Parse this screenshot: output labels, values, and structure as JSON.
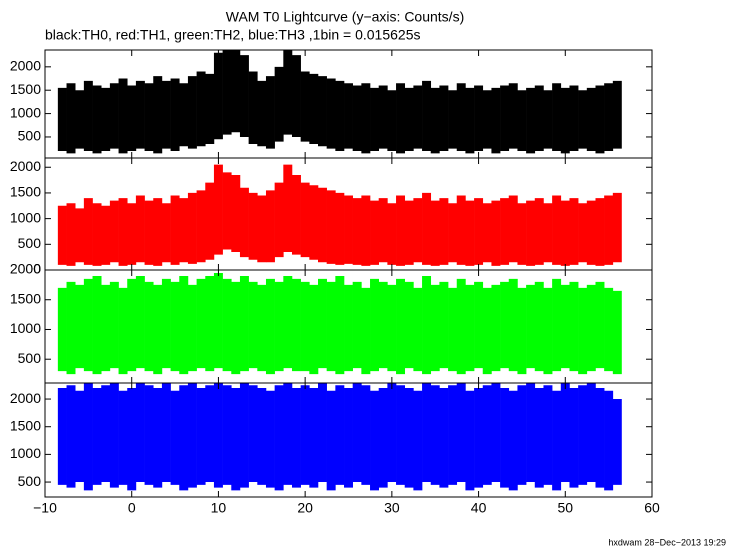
{
  "footer": "hxdwam 28−Dec−2013 19:29",
  "chart_data": [
    {
      "type": "band",
      "title": "WAM T0 Lightcurve (y−axis: Counts/s)",
      "subtitle": "black:TH0, red:TH1, green:TH2, blue:TH3 ,1bin = 0.015625s",
      "color": "#000000",
      "x": [
        -8,
        -7,
        -6,
        -5,
        -4,
        -3,
        -2,
        -1,
        0,
        1,
        2,
        3,
        4,
        5,
        6,
        7,
        8,
        9,
        10,
        11,
        12,
        13,
        14,
        15,
        16,
        17,
        18,
        19,
        20,
        21,
        22,
        23,
        24,
        25,
        26,
        27,
        28,
        29,
        30,
        31,
        32,
        33,
        34,
        35,
        36,
        37,
        38,
        39,
        40,
        41,
        42,
        43,
        44,
        45,
        46,
        47,
        48,
        49,
        50,
        51,
        52,
        53,
        54,
        55,
        56
      ],
      "high": [
        1550,
        1650,
        1500,
        1700,
        1600,
        1550,
        1650,
        1750,
        1600,
        1700,
        1650,
        1800,
        1700,
        1750,
        1650,
        1800,
        1900,
        1850,
        2300,
        2350,
        2400,
        2250,
        1900,
        1700,
        1800,
        2000,
        2350,
        2250,
        1900,
        1850,
        1800,
        1750,
        1700,
        1650,
        1600,
        1650,
        1550,
        1600,
        1500,
        1650,
        1550,
        1600,
        1700,
        1550,
        1600,
        1500,
        1650,
        1550,
        1600,
        1500,
        1550,
        1600,
        1650,
        1500,
        1550,
        1600,
        1500,
        1650,
        1550,
        1600,
        1500,
        1550,
        1600,
        1650,
        1700
      ],
      "low": [
        200,
        150,
        250,
        200,
        150,
        200,
        250,
        150,
        200,
        250,
        200,
        150,
        250,
        200,
        300,
        250,
        300,
        350,
        450,
        550,
        600,
        500,
        350,
        300,
        250,
        400,
        550,
        500,
        400,
        350,
        300,
        250,
        200,
        250,
        200,
        150,
        200,
        250,
        200,
        150,
        200,
        250,
        200,
        150,
        200,
        250,
        200,
        150,
        200,
        250,
        150,
        200,
        250,
        200,
        150,
        200,
        250,
        200,
        150,
        200,
        250,
        200,
        150,
        200,
        250
      ],
      "xlim": [
        -10,
        60
      ],
      "xticks": [
        {
          "value": -10,
          "label": "−10"
        },
        0,
        10,
        20,
        30,
        40,
        50,
        60
      ],
      "ylim": [
        50,
        2360
      ],
      "yticks": [
        500,
        1000,
        1500,
        2000
      ]
    },
    {
      "type": "band",
      "color": "#ff0000",
      "x": [
        -8,
        -7,
        -6,
        -5,
        -4,
        -3,
        -2,
        -1,
        0,
        1,
        2,
        3,
        4,
        5,
        6,
        7,
        8,
        9,
        10,
        11,
        12,
        13,
        14,
        15,
        16,
        17,
        18,
        19,
        20,
        21,
        22,
        23,
        24,
        25,
        26,
        27,
        28,
        29,
        30,
        31,
        32,
        33,
        34,
        35,
        36,
        37,
        38,
        39,
        40,
        41,
        42,
        43,
        44,
        45,
        46,
        47,
        48,
        49,
        50,
        51,
        52,
        53,
        54,
        55,
        56
      ],
      "high": [
        1250,
        1300,
        1200,
        1400,
        1300,
        1250,
        1350,
        1400,
        1300,
        1450,
        1350,
        1400,
        1300,
        1450,
        1400,
        1500,
        1550,
        1700,
        2050,
        1900,
        1850,
        1600,
        1500,
        1450,
        1550,
        1700,
        2050,
        1850,
        1700,
        1650,
        1600,
        1550,
        1500,
        1450,
        1400,
        1450,
        1350,
        1400,
        1300,
        1450,
        1350,
        1400,
        1500,
        1350,
        1400,
        1300,
        1450,
        1350,
        1400,
        1300,
        1350,
        1400,
        1450,
        1300,
        1350,
        1400,
        1300,
        1450,
        1350,
        1400,
        1300,
        1350,
        1400,
        1450,
        1500
      ],
      "low": [
        100,
        80,
        150,
        100,
        80,
        100,
        150,
        80,
        100,
        150,
        100,
        80,
        150,
        100,
        150,
        120,
        150,
        200,
        300,
        400,
        350,
        250,
        200,
        150,
        150,
        250,
        350,
        300,
        250,
        200,
        150,
        120,
        100,
        120,
        100,
        80,
        100,
        150,
        100,
        80,
        100,
        150,
        100,
        80,
        100,
        150,
        100,
        80,
        100,
        150,
        80,
        100,
        150,
        100,
        80,
        100,
        150,
        100,
        80,
        100,
        150,
        100,
        80,
        100,
        150
      ],
      "xlim": [
        -10,
        60
      ],
      "xticks": [
        -10,
        0,
        10,
        20,
        30,
        40,
        50,
        60
      ],
      "ylim": [
        0,
        2180
      ],
      "yticks": [
        0,
        500,
        1000,
        1500,
        2000
      ]
    },
    {
      "type": "band",
      "color": "#00ff00",
      "x": [
        -8,
        -7,
        -6,
        -5,
        -4,
        -3,
        -2,
        -1,
        0,
        1,
        2,
        3,
        4,
        5,
        6,
        7,
        8,
        9,
        10,
        11,
        12,
        13,
        14,
        15,
        16,
        17,
        18,
        19,
        20,
        21,
        22,
        23,
        24,
        25,
        26,
        27,
        28,
        29,
        30,
        31,
        32,
        33,
        34,
        35,
        36,
        37,
        38,
        39,
        40,
        41,
        42,
        43,
        44,
        45,
        46,
        47,
        48,
        49,
        50,
        51,
        52,
        53,
        54,
        55,
        56
      ],
      "high": [
        1700,
        1800,
        1750,
        1850,
        1900,
        1750,
        1800,
        1700,
        1850,
        1900,
        1800,
        1750,
        1850,
        1800,
        1900,
        1750,
        1850,
        1900,
        1950,
        1850,
        1800,
        1900,
        1800,
        1750,
        1850,
        1800,
        1900,
        1850,
        1800,
        1750,
        1850,
        1800,
        1900,
        1750,
        1800,
        1700,
        1850,
        1800,
        1750,
        1850,
        1800,
        1700,
        1900,
        1750,
        1800,
        1700,
        1850,
        1750,
        1800,
        1700,
        1750,
        1800,
        1850,
        1700,
        1750,
        1800,
        1700,
        1850,
        1750,
        1800,
        1700,
        1750,
        1800,
        1700,
        1650
      ],
      "low": [
        300,
        250,
        350,
        300,
        250,
        300,
        350,
        250,
        300,
        350,
        300,
        250,
        350,
        300,
        250,
        300,
        350,
        300,
        350,
        300,
        250,
        300,
        350,
        300,
        250,
        300,
        350,
        300,
        300,
        250,
        350,
        300,
        250,
        300,
        350,
        250,
        300,
        350,
        300,
        250,
        350,
        300,
        250,
        300,
        350,
        300,
        250,
        300,
        350,
        250,
        300,
        350,
        300,
        250,
        350,
        300,
        250,
        300,
        350,
        300,
        250,
        300,
        350,
        300,
        250
      ],
      "xlim": [
        -10,
        60
      ],
      "xticks": [
        -10,
        0,
        10,
        20,
        30,
        40,
        50,
        60
      ],
      "ylim": [
        100,
        2000
      ],
      "yticks": [
        500,
        1000,
        1500,
        2000
      ]
    },
    {
      "type": "band",
      "color": "#0000ff",
      "x": [
        -8,
        -7,
        -6,
        -5,
        -4,
        -3,
        -2,
        -1,
        0,
        1,
        2,
        3,
        4,
        5,
        6,
        7,
        8,
        9,
        10,
        11,
        12,
        13,
        14,
        15,
        16,
        17,
        18,
        19,
        20,
        21,
        22,
        23,
        24,
        25,
        26,
        27,
        28,
        29,
        30,
        31,
        32,
        33,
        34,
        35,
        36,
        37,
        38,
        39,
        40,
        41,
        42,
        43,
        44,
        45,
        46,
        47,
        48,
        49,
        50,
        51,
        52,
        53,
        54,
        55,
        56
      ],
      "high": [
        2200,
        2250,
        2150,
        2290,
        2200,
        2250,
        2290,
        2150,
        2200,
        2290,
        2250,
        2200,
        2290,
        2150,
        2250,
        2290,
        2200,
        2250,
        2290,
        2250,
        2200,
        2290,
        2250,
        2200,
        2150,
        2250,
        2290,
        2200,
        2250,
        2200,
        2290,
        2150,
        2250,
        2200,
        2290,
        2250,
        2150,
        2200,
        2290,
        2250,
        2200,
        2150,
        2290,
        2250,
        2200,
        2250,
        2290,
        2150,
        2200,
        2250,
        2290,
        2200,
        2150,
        2250,
        2290,
        2200,
        2250,
        2150,
        2290,
        2200,
        2250,
        2290,
        2200,
        2150,
        2000
      ],
      "low": [
        450,
        400,
        500,
        350,
        450,
        500,
        400,
        450,
        350,
        500,
        450,
        400,
        500,
        450,
        350,
        400,
        450,
        500,
        400,
        450,
        350,
        400,
        500,
        450,
        400,
        350,
        450,
        400,
        450,
        400,
        500,
        350,
        450,
        400,
        500,
        450,
        350,
        400,
        500,
        450,
        400,
        350,
        500,
        450,
        400,
        450,
        500,
        350,
        400,
        450,
        500,
        400,
        350,
        450,
        500,
        400,
        450,
        350,
        500,
        400,
        450,
        500,
        400,
        350,
        450
      ],
      "xlim": [
        -10,
        60
      ],
      "xticks": [
        {
          "value": -10,
          "label": "−10"
        },
        0,
        10,
        20,
        30,
        40,
        50,
        60
      ],
      "ylim": [
        230,
        2290
      ],
      "yticks": [
        500,
        1000,
        1500,
        2000
      ]
    }
  ]
}
